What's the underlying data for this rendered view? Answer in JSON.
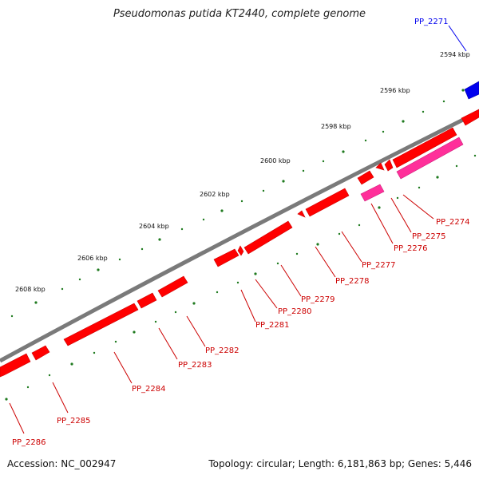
{
  "header": {
    "title": "Pseudomonas putida KT2440, complete genome"
  },
  "footer": {
    "accession": "Accession: NC_002947",
    "summary": "Topology: circular; Length: 6,181,863 bp; Genes: 5,446"
  },
  "colors": {
    "backbone": "#7a7a7a",
    "tick": "#1f7a1f",
    "forward_gene": "#ff0000",
    "forward_gene_label": "#cc0000",
    "reverse_gene": "#ff2f9a",
    "highlight_gene": "#0000ee"
  },
  "tick_labels": [
    "2594 kbp",
    "2596 kbp",
    "2598 kbp",
    "2600 kbp",
    "2602 kbp",
    "2604 kbp",
    "2606 kbp",
    "2608 kbp"
  ],
  "gene_labels": [
    {
      "name": "PP_2271",
      "color": "#0000ee"
    },
    {
      "name": "PP_2274",
      "color": "#cc0000"
    },
    {
      "name": "PP_2275",
      "color": "#cc0000"
    },
    {
      "name": "PP_2276",
      "color": "#cc0000"
    },
    {
      "name": "PP_2277",
      "color": "#cc0000"
    },
    {
      "name": "PP_2278",
      "color": "#cc0000"
    },
    {
      "name": "PP_2279",
      "color": "#cc0000"
    },
    {
      "name": "PP_2280",
      "color": "#cc0000"
    },
    {
      "name": "PP_2281",
      "color": "#cc0000"
    },
    {
      "name": "PP_2282",
      "color": "#cc0000"
    },
    {
      "name": "PP_2283",
      "color": "#cc0000"
    },
    {
      "name": "PP_2284",
      "color": "#cc0000"
    },
    {
      "name": "PP_2285",
      "color": "#cc0000"
    },
    {
      "name": "PP_2286",
      "color": "#cc0000"
    }
  ]
}
